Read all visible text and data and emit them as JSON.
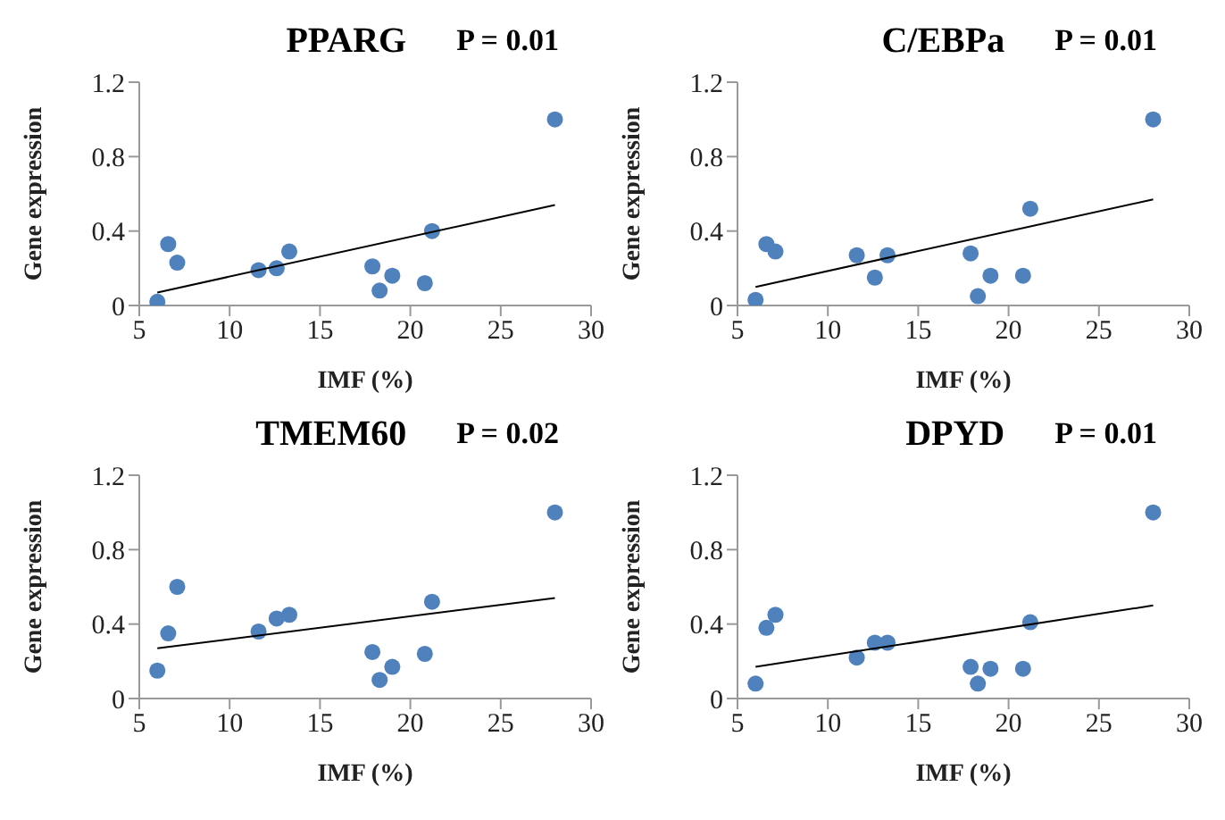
{
  "chart_data": [
    {
      "type": "scatter",
      "title": "PPARG",
      "annotations": [
        "P = 0.01"
      ],
      "xlabel": "IMF (%)",
      "ylabel": "Gene expression",
      "xlim": [
        5,
        30
      ],
      "xticks": [
        5,
        10,
        15,
        20,
        25,
        30
      ],
      "ylim": [
        0,
        1.2
      ],
      "yticks": [
        0,
        0.4,
        0.8,
        1.2
      ],
      "grid": false,
      "legend": false,
      "series": [
        {
          "marker": "circle",
          "color": "#4f81bd",
          "x": [
            6.0,
            6.6,
            7.1,
            11.6,
            12.6,
            13.3,
            17.9,
            18.3,
            19.0,
            20.8,
            21.2,
            28.0
          ],
          "values": [
            0.02,
            0.33,
            0.23,
            0.19,
            0.2,
            0.29,
            0.21,
            0.08,
            0.16,
            0.12,
            0.4,
            1.0
          ]
        },
        {
          "type": "line",
          "marker": "none",
          "color": "#000000",
          "x": [
            6,
            28
          ],
          "values": [
            0.07,
            0.54
          ]
        }
      ]
    },
    {
      "type": "scatter",
      "title": "C/EBPa",
      "annotations": [
        "P = 0.01"
      ],
      "xlabel": "IMF (%)",
      "ylabel": "Gene expression",
      "xlim": [
        5,
        30
      ],
      "xticks": [
        5,
        10,
        15,
        20,
        25,
        30
      ],
      "ylim": [
        0,
        1.2
      ],
      "yticks": [
        0,
        0.4,
        0.8,
        1.2
      ],
      "grid": false,
      "legend": false,
      "series": [
        {
          "marker": "circle",
          "color": "#4f81bd",
          "x": [
            6.0,
            6.6,
            7.1,
            11.6,
            12.6,
            13.3,
            17.9,
            18.3,
            19.0,
            20.8,
            21.2,
            28.0
          ],
          "values": [
            0.03,
            0.33,
            0.29,
            0.27,
            0.15,
            0.27,
            0.28,
            0.05,
            0.16,
            0.16,
            0.52,
            1.0
          ]
        },
        {
          "type": "line",
          "marker": "none",
          "color": "#000000",
          "x": [
            6,
            28
          ],
          "values": [
            0.1,
            0.57
          ]
        }
      ]
    },
    {
      "type": "scatter",
      "title": "TMEM60",
      "annotations": [
        "P = 0.02"
      ],
      "xlabel": "IMF (%)",
      "ylabel": "Gene expression",
      "xlim": [
        5,
        30
      ],
      "xticks": [
        5,
        10,
        15,
        20,
        25,
        30
      ],
      "ylim": [
        0,
        1.2
      ],
      "yticks": [
        0,
        0.4,
        0.8,
        1.2
      ],
      "grid": false,
      "legend": false,
      "series": [
        {
          "marker": "circle",
          "color": "#4f81bd",
          "x": [
            6.0,
            6.6,
            7.1,
            11.6,
            12.6,
            13.3,
            17.9,
            18.3,
            19.0,
            20.8,
            21.2,
            28.0
          ],
          "values": [
            0.15,
            0.35,
            0.6,
            0.36,
            0.43,
            0.45,
            0.25,
            0.1,
            0.17,
            0.24,
            0.52,
            1.0
          ]
        },
        {
          "type": "line",
          "marker": "none",
          "color": "#000000",
          "x": [
            6,
            28
          ],
          "values": [
            0.27,
            0.54
          ]
        }
      ]
    },
    {
      "type": "scatter",
      "title": "DPYD",
      "annotations": [
        "P = 0.01"
      ],
      "xlabel": "IMF (%)",
      "ylabel": "Gene expression",
      "xlim": [
        5,
        30
      ],
      "xticks": [
        5,
        10,
        15,
        20,
        25,
        30
      ],
      "ylim": [
        0,
        1.2
      ],
      "yticks": [
        0,
        0.4,
        0.8,
        1.2
      ],
      "grid": false,
      "legend": false,
      "series": [
        {
          "marker": "circle",
          "color": "#4f81bd",
          "x": [
            6.0,
            6.6,
            7.1,
            11.6,
            12.6,
            13.3,
            17.9,
            18.3,
            19.0,
            20.8,
            21.2,
            28.0
          ],
          "values": [
            0.08,
            0.38,
            0.45,
            0.22,
            0.3,
            0.3,
            0.17,
            0.08,
            0.16,
            0.16,
            0.41,
            1.0
          ]
        },
        {
          "type": "line",
          "marker": "none",
          "color": "#000000",
          "x": [
            6,
            28
          ],
          "values": [
            0.17,
            0.5
          ]
        }
      ]
    }
  ]
}
